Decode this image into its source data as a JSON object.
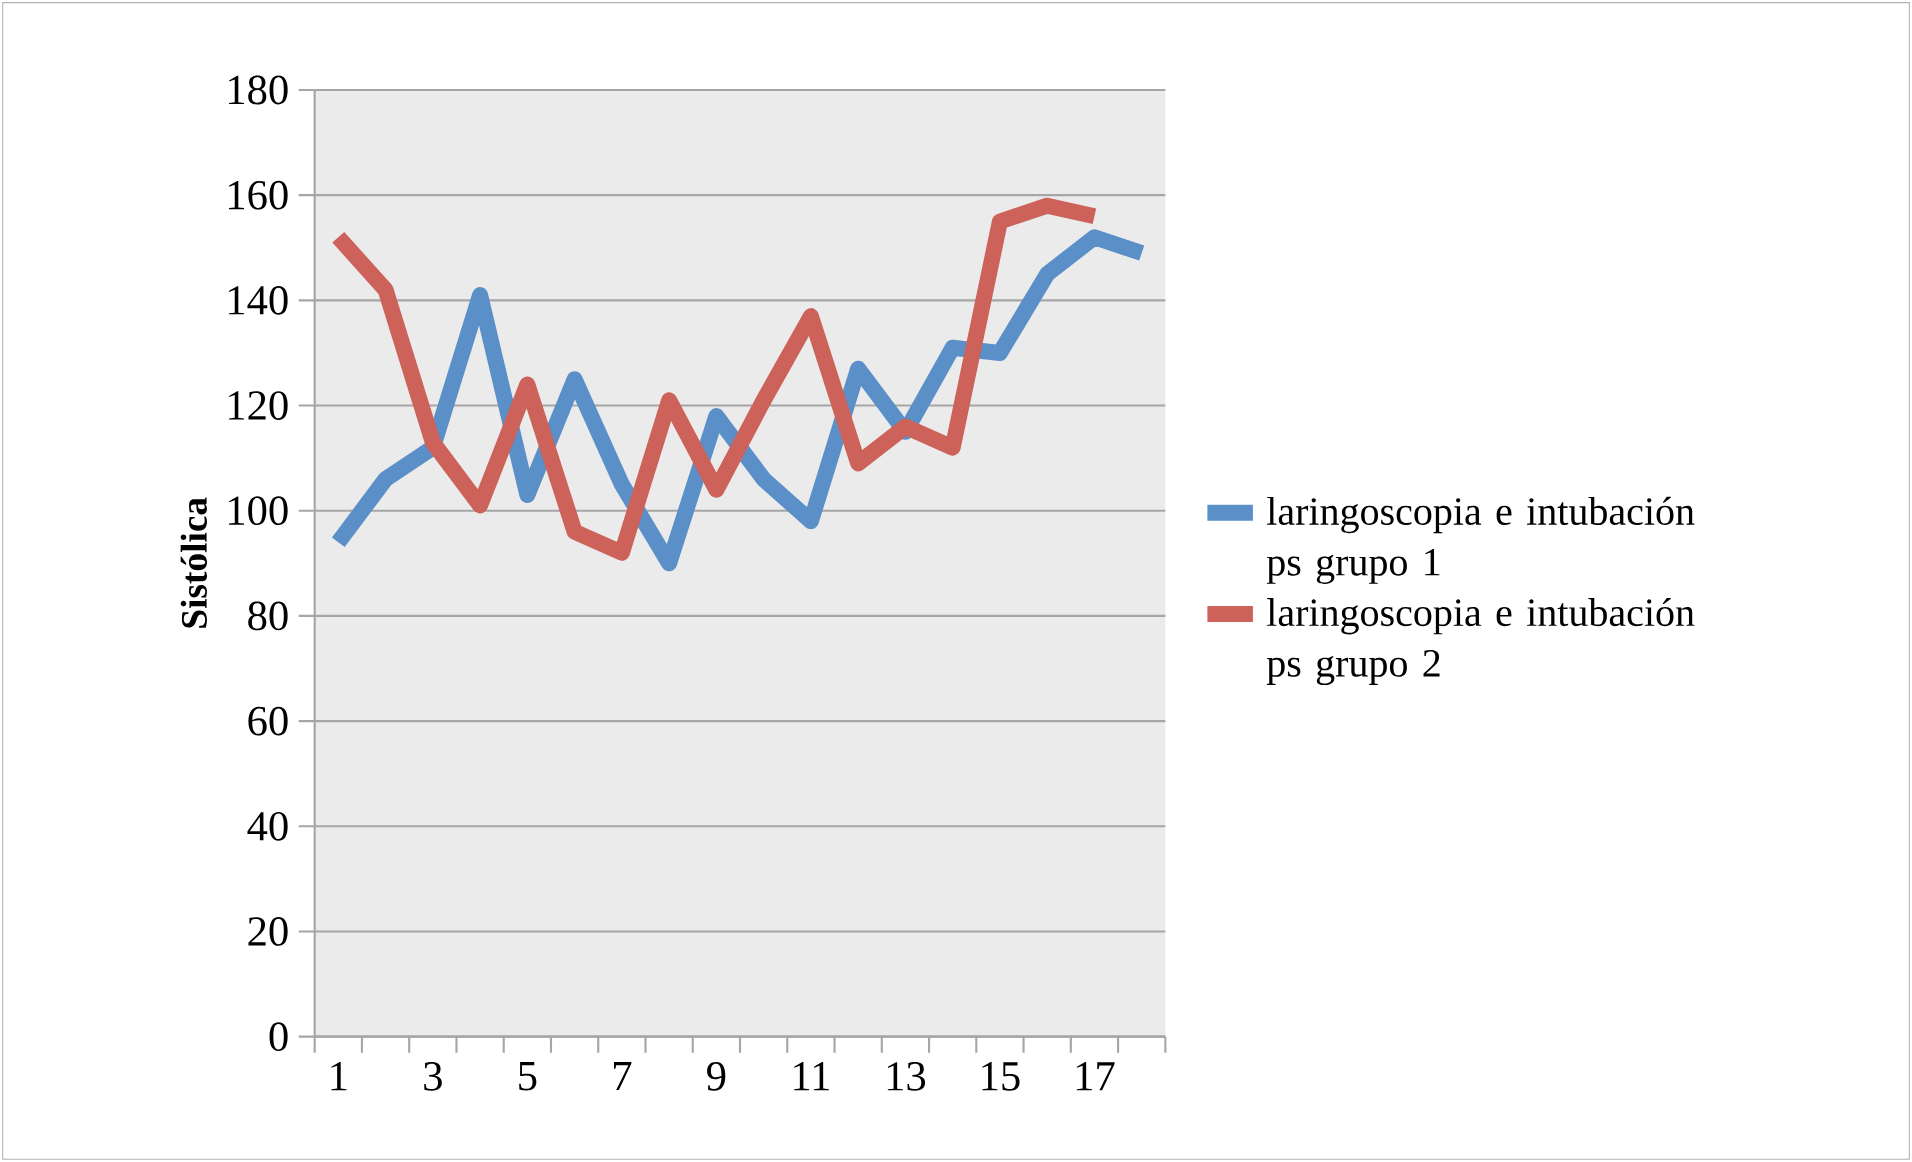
{
  "chart_data": {
    "type": "line",
    "ylabel": "Sistólica",
    "categories": [
      "1",
      null,
      "3",
      null,
      "5",
      null,
      "7",
      null,
      "9",
      null,
      "11",
      null,
      "13",
      null,
      "15",
      null,
      "17",
      null
    ],
    "series": [
      {
        "name": "laringoscopia e intubación ps grupo 1",
        "color": "#5b8fc8",
        "values": [
          94,
          106,
          112,
          141,
          103,
          125,
          105,
          90,
          118,
          106,
          98,
          127,
          115,
          131,
          130,
          145,
          152,
          149
        ]
      },
      {
        "name": "laringoscopia e intubación ps grupo 2",
        "color": "#cc625a",
        "values": [
          152,
          142,
          113,
          101,
          124,
          96,
          92,
          121,
          104,
          121,
          137,
          109,
          116,
          112,
          155,
          158,
          156,
          null
        ]
      }
    ],
    "ylim": [
      0,
      180
    ],
    "yticks": [
      0,
      20,
      40,
      60,
      80,
      100,
      120,
      140,
      160,
      180
    ],
    "grid": "y",
    "legend": "right",
    "marker": "none",
    "line_style": "solid"
  }
}
